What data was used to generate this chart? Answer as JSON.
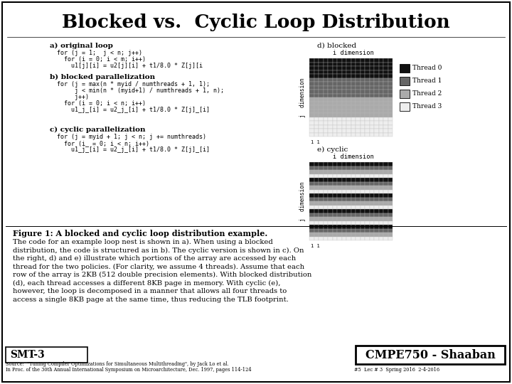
{
  "title": "Blocked vs.  Cyclic Loop Distribution",
  "bg_color": "#ffffff",
  "section_a_label": "a) original loop",
  "section_a_code": [
    "for (j = 1;  j < n; j++)",
    "  for (i = 0; i < m; i++)",
    "    u1[j][i] = u2[j][i] + t1/8.0 * Z[j][i"
  ],
  "section_b_label": "b) blocked parallelization",
  "section_b_code": [
    "for (j = max(n * myid / numthreads + 1, 1);",
    "     j < min(n * (myid+1) / numthreads + 1, n);",
    "     j++)",
    "  for (i = 0; i < n; i++)",
    "    u1_j_[i] = u2_j_[i] + t1/8.0 * Z[j]_[i]"
  ],
  "section_c_label": "c) cyclic parallelization",
  "section_c_code": [
    "for (j = myid + 1; j < n; j += numthreads)",
    "  for (i_ = 0; i < n; i++)",
    "    u1_j_[i] = u2_j_[i] + t1/8.0 * Z[j]_[i]"
  ],
  "legend_labels": [
    "Thread 0",
    "Thread 1",
    "Thread 2",
    "Thread 3"
  ],
  "thread_colors": [
    "#111111",
    "#666666",
    "#aaaaaa",
    "#eeeeee"
  ],
  "figure_caption_bold": "Figure 1: A blocked and cyclic loop distribution example.",
  "figure_caption_lines": [
    "The code for an example loop nest is shown in a). When using a blocked",
    "distribution, the code is structured as in b). The cyclic version is shown in c). On",
    "the right, d) and e) illustrate which portions of the array are accessed by each",
    "thread for the two policies. (For clarity, we assume 4 threads). Assume that each",
    "row of the array is 2KB (512 double precision elements). With blocked distribution",
    "(d), each thread accesses a different 8KB page in memory. With cyclic (e),",
    "however, the loop is decomposed in a manner that allows all four threads to",
    "access a single 8KB page at the same time, thus reducing the TLB footprint."
  ],
  "smt_label": "SMT-3",
  "course_label": "CMPE750 - Shaaban",
  "source_line1": "Source:  \"Tuning Compiler Optimizations for Simultaneous Multithreading\", by Jack Lo et al.",
  "source_line2": "In Proc. of the 30th Annual International Symposium on Microarchitecture, Dec. 1997, pages 114-124",
  "lec_info": "#5  Lec # 3  Spring 2016  2-4-2016"
}
